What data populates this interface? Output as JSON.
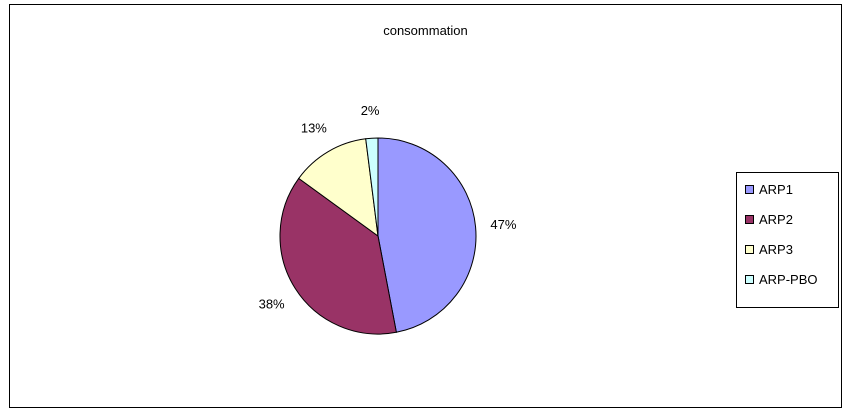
{
  "chart_data": {
    "type": "pie",
    "title": "consommation",
    "slices": [
      {
        "label": "ARP1",
        "value": 47,
        "value_label": "47%",
        "color": "#9999ff"
      },
      {
        "label": "ARP2",
        "value": 38,
        "value_label": "38%",
        "color": "#993366"
      },
      {
        "label": "ARP3",
        "value": 13,
        "value_label": "13%",
        "color": "#ffffcc"
      },
      {
        "label": "ARP-PBO",
        "value": 2,
        "value_label": "2%",
        "color": "#ccffff"
      }
    ],
    "legend_position": "right",
    "start_angle": "12 o'clock",
    "direction": "clockwise"
  }
}
